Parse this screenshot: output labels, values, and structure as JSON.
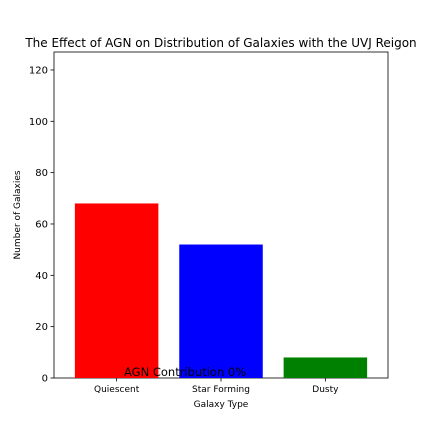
{
  "chart_data": {
    "type": "bar",
    "title": "The Effect of AGN on Distribution of Galaxies with the UVJ Reigon",
    "xlabel": "Galaxy Type",
    "ylabel": "Number of Galaxies",
    "categories": [
      "Quiescent",
      "Star Forming",
      "Dusty"
    ],
    "values": [
      68,
      52,
      8
    ],
    "colors": [
      "#ff0000",
      "#0000ff",
      "#008000"
    ],
    "ylim": [
      0,
      127
    ],
    "yticks": [
      0,
      20,
      40,
      60,
      80,
      100,
      120
    ],
    "annotation": "AGN Contribution  0%",
    "grid": false
  }
}
